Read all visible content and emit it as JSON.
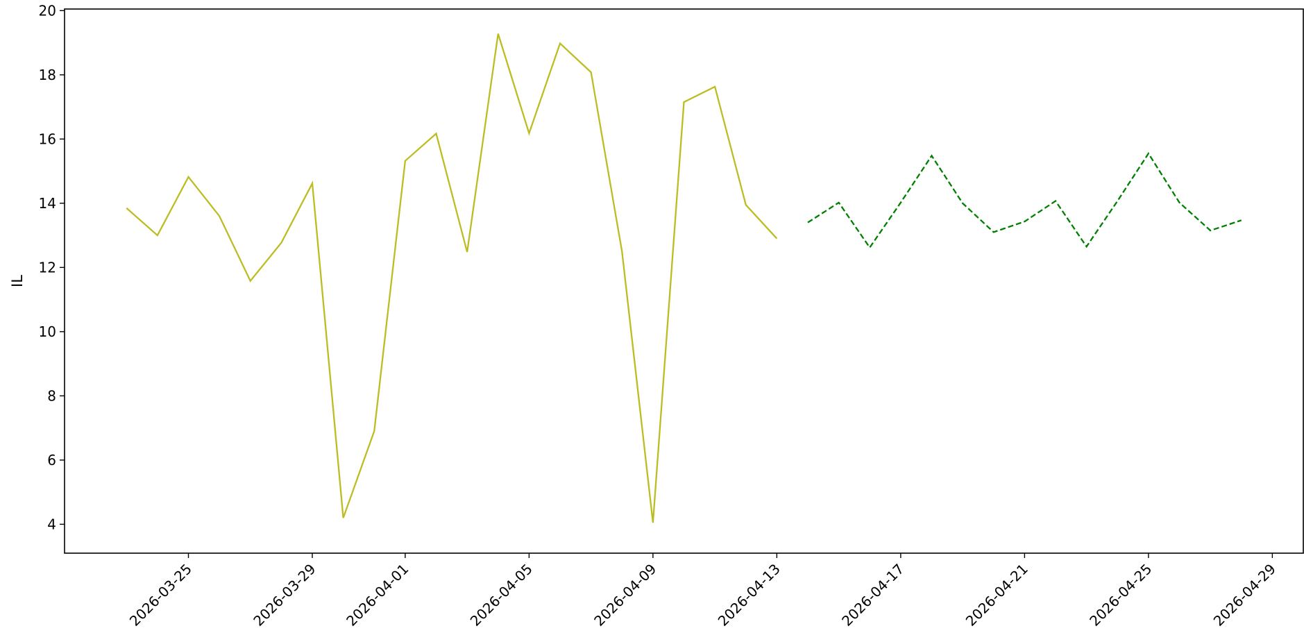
{
  "chart_data": {
    "type": "line",
    "ylabel": "IL",
    "ylim": [
      3.1,
      20.05
    ],
    "xlim": [
      "2026-03-21",
      "2026-04-30"
    ],
    "yticks": [
      4,
      6,
      8,
      10,
      12,
      14,
      16,
      18,
      20
    ],
    "xticks": [
      "2026-03-25",
      "2026-03-29",
      "2026-04-01",
      "2026-04-05",
      "2026-04-09",
      "2026-04-13",
      "2026-04-17",
      "2026-04-21",
      "2026-04-25",
      "2026-04-29"
    ],
    "grid": false,
    "series": [
      {
        "color": "#bcbd22",
        "line_style": "solid",
        "x": [
          "2026-03-23",
          "2026-03-24",
          "2026-03-25",
          "2026-03-26",
          "2026-03-27",
          "2026-03-28",
          "2026-03-29",
          "2026-03-30",
          "2026-03-31",
          "2026-04-01",
          "2026-04-02",
          "2026-04-03",
          "2026-04-04",
          "2026-04-05",
          "2026-04-06",
          "2026-04-07",
          "2026-04-08",
          "2026-04-09",
          "2026-04-10",
          "2026-04-11",
          "2026-04-12",
          "2026-04-13"
        ],
        "values": [
          13.85,
          13.0,
          14.82,
          13.6,
          11.58,
          12.77,
          14.62,
          4.2,
          6.9,
          15.32,
          16.17,
          12.48,
          19.28,
          16.18,
          18.98,
          18.08,
          12.5,
          4.05,
          17.15,
          17.63,
          13.95,
          12.9
        ]
      },
      {
        "color": "#008000",
        "line_style": "dashed",
        "x": [
          "2026-04-14",
          "2026-04-15",
          "2026-04-16",
          "2026-04-17",
          "2026-04-18",
          "2026-04-19",
          "2026-04-20",
          "2026-04-21",
          "2026-04-22",
          "2026-04-23",
          "2026-04-24",
          "2026-04-25",
          "2026-04-26",
          "2026-04-27",
          "2026-04-28"
        ],
        "values": [
          13.4,
          14.02,
          12.62,
          14.02,
          15.48,
          14.0,
          13.1,
          13.43,
          14.07,
          12.65,
          14.07,
          15.55,
          14.02,
          13.15,
          13.47
        ]
      }
    ]
  }
}
